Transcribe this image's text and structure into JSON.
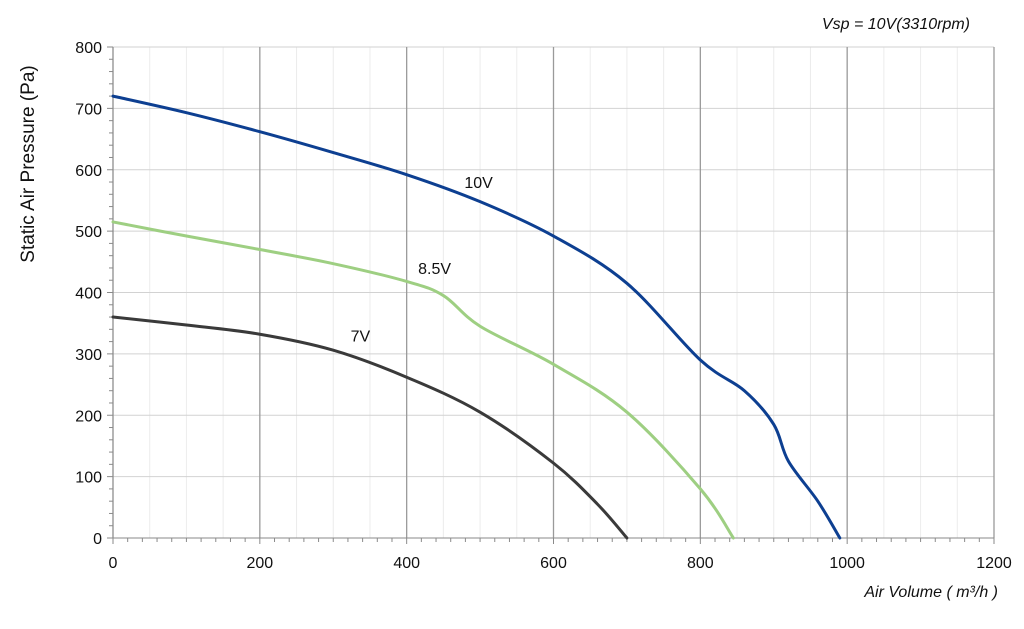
{
  "chart_data": {
    "type": "line",
    "title": "",
    "annotation": "Vsp = 10V(3310rpm)",
    "xlabel": "Air Volume ( m³/h )",
    "ylabel": "Static Air Pressure  (Pa)",
    "xlim": [
      0,
      1200
    ],
    "ylim": [
      0,
      800
    ],
    "x_ticks": [
      0,
      200,
      400,
      600,
      800,
      1000,
      1200
    ],
    "y_ticks": [
      0,
      100,
      200,
      300,
      400,
      500,
      600,
      700,
      800
    ],
    "grid": true,
    "series": [
      {
        "name": "10V",
        "color": "#0d3f91",
        "points": [
          [
            0,
            720
          ],
          [
            100,
            693
          ],
          [
            200,
            662
          ],
          [
            300,
            628
          ],
          [
            400,
            592
          ],
          [
            500,
            548
          ],
          [
            600,
            492
          ],
          [
            700,
            415
          ],
          [
            800,
            290
          ],
          [
            860,
            240
          ],
          [
            900,
            185
          ],
          [
            920,
            125
          ],
          [
            960,
            60
          ],
          [
            990,
            0
          ]
        ]
      },
      {
        "name": "8.5V",
        "color": "#9ecf82",
        "points": [
          [
            0,
            515
          ],
          [
            100,
            492
          ],
          [
            200,
            470
          ],
          [
            300,
            447
          ],
          [
            400,
            418
          ],
          [
            450,
            395
          ],
          [
            500,
            345
          ],
          [
            600,
            283
          ],
          [
            700,
            205
          ],
          [
            800,
            80
          ],
          [
            845,
            0
          ]
        ]
      },
      {
        "name": "7V",
        "color": "#3a3a3a",
        "points": [
          [
            0,
            360
          ],
          [
            100,
            347
          ],
          [
            200,
            332
          ],
          [
            300,
            306
          ],
          [
            400,
            262
          ],
          [
            500,
            205
          ],
          [
            600,
            122
          ],
          [
            660,
            55
          ],
          [
            700,
            0
          ]
        ]
      }
    ],
    "series_labels": [
      {
        "text": "10V",
        "x": 498,
        "y": 570
      },
      {
        "text": "8.5V",
        "x": 438,
        "y": 430
      },
      {
        "text": "7V",
        "x": 337,
        "y": 320
      }
    ]
  }
}
